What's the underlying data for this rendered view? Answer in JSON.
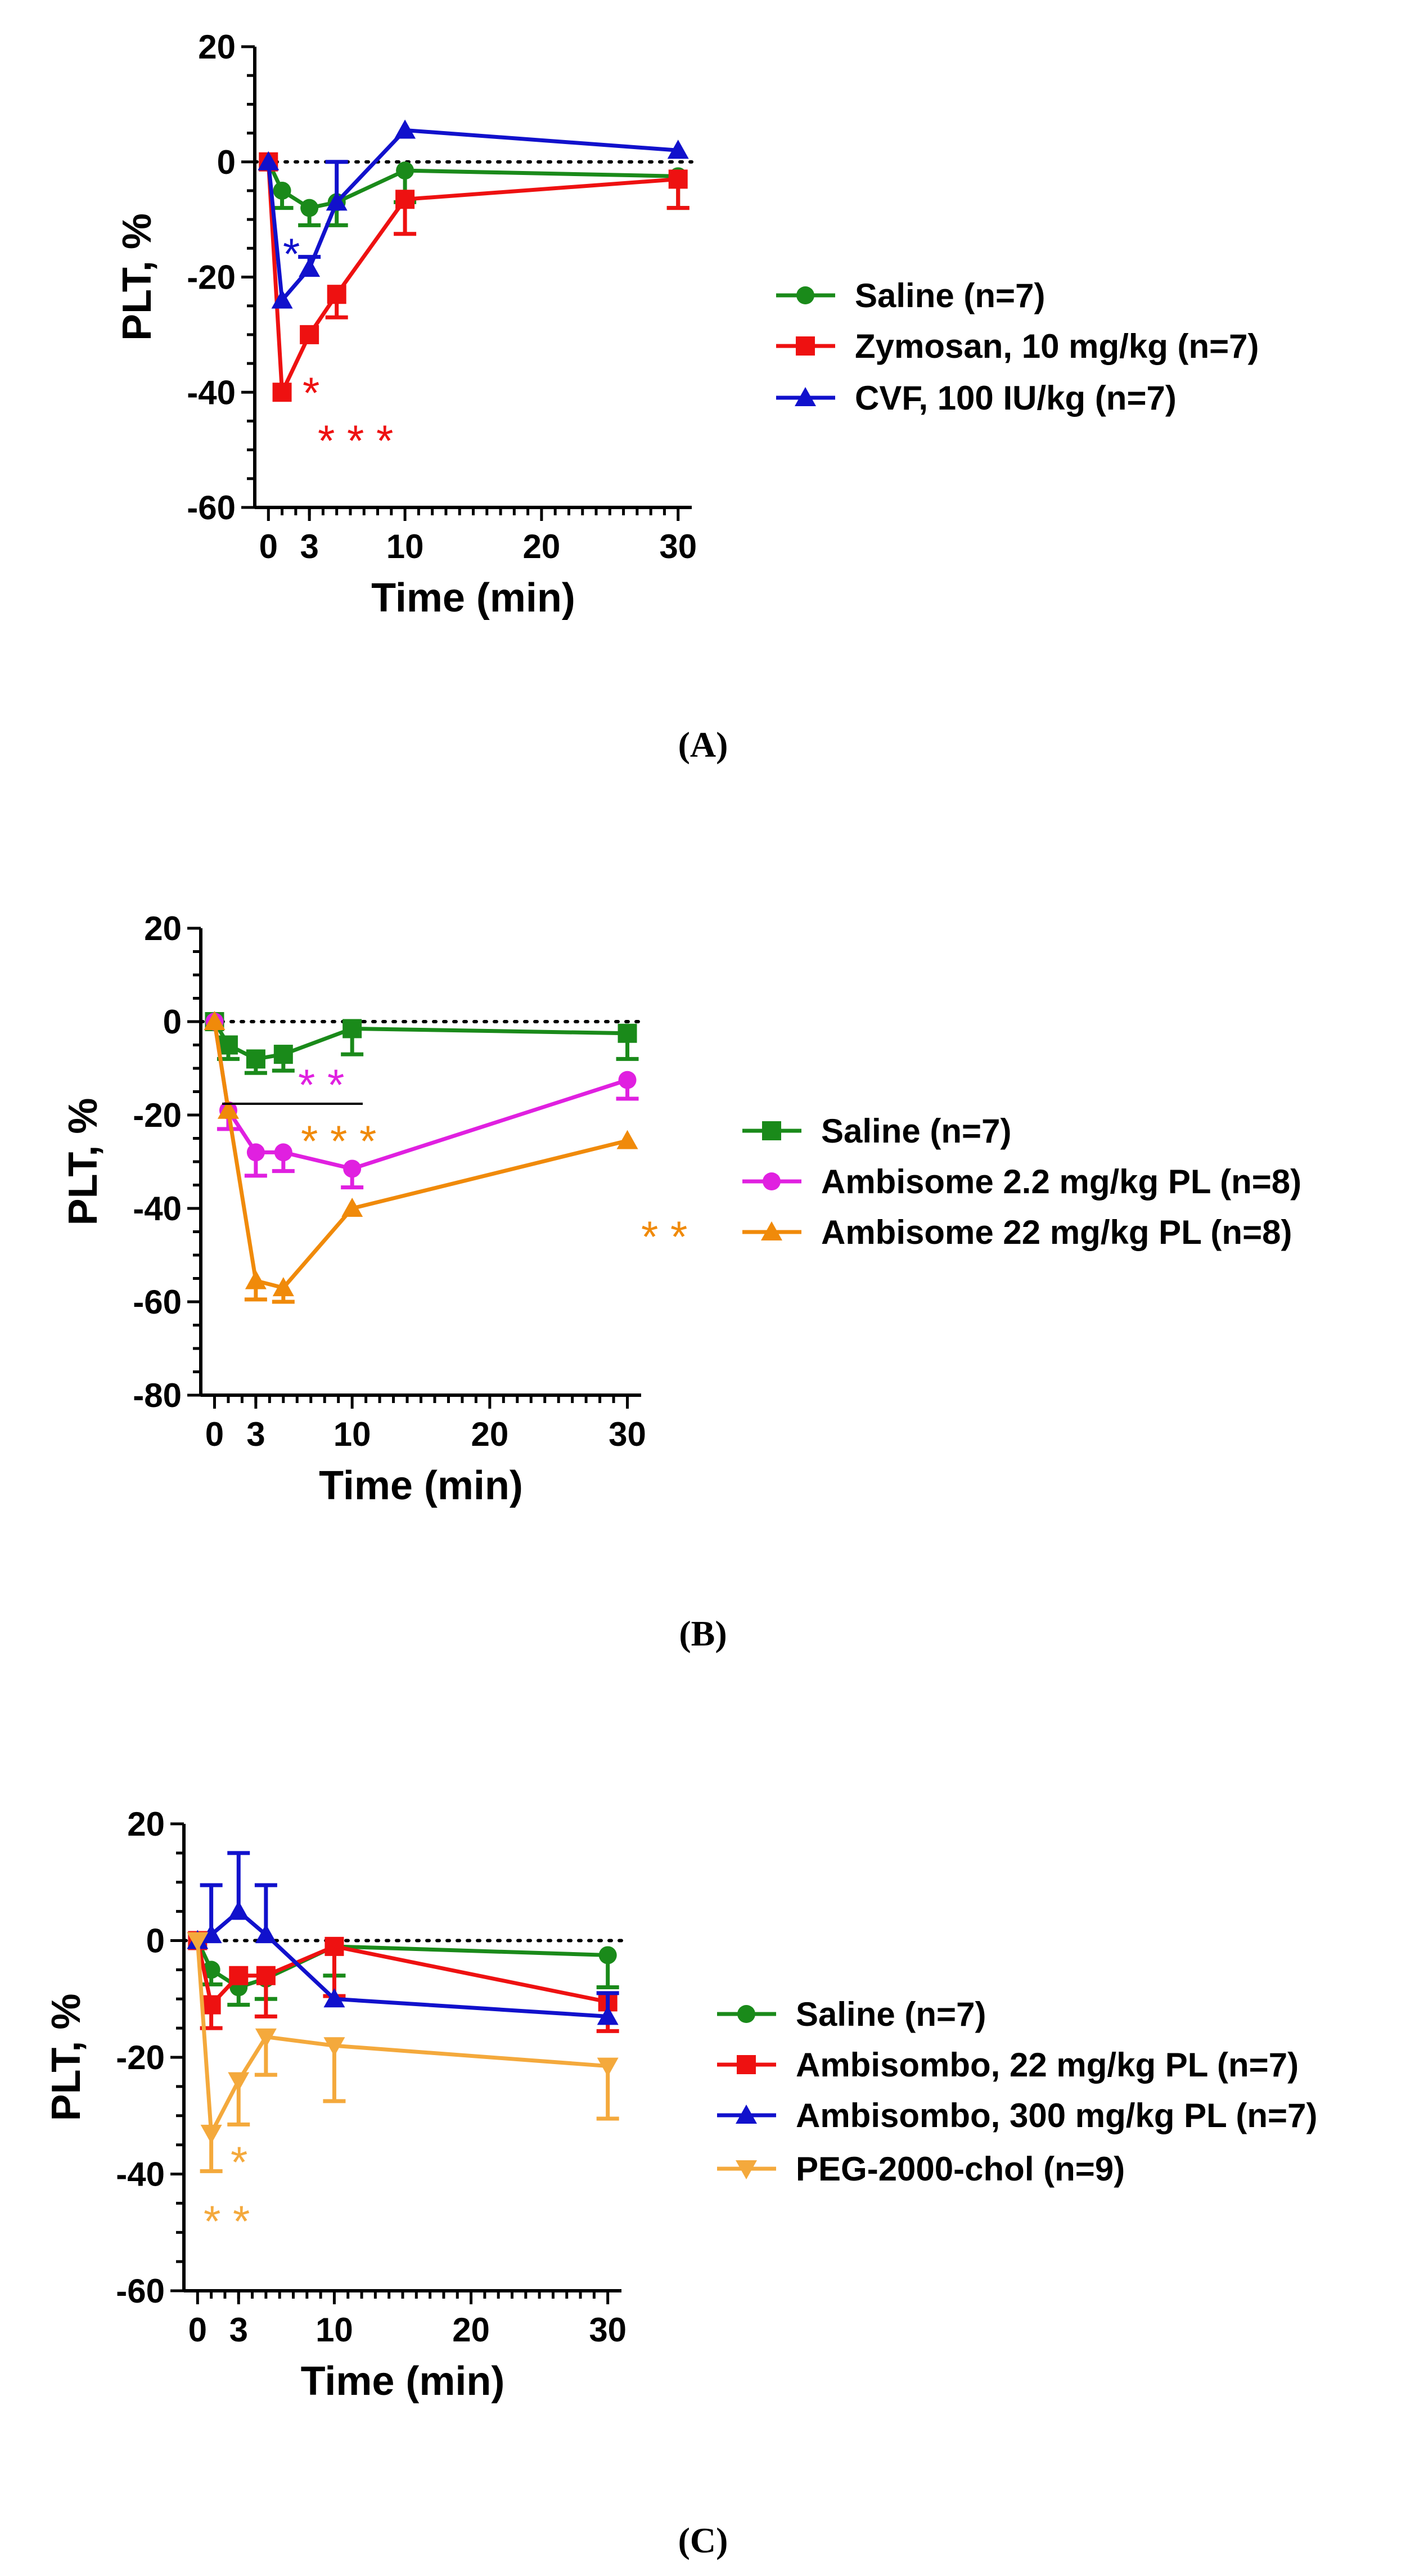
{
  "colors": {
    "green": "#1a8a1a",
    "red": "#ee1111",
    "blue": "#1111cc",
    "magenta": "#e020e0",
    "orange": "#f08a0a",
    "lightorange": "#f4a93c",
    "axis": "#000000"
  },
  "chart_data": [
    {
      "type": "line",
      "panel_label": "(A)",
      "ylabel": "PLT, %",
      "xlabel": "Time (min)",
      "ylim": [
        -60,
        20
      ],
      "yticks": [
        "20",
        "0",
        "-20",
        "-40",
        "-60"
      ],
      "xticks": [
        "0",
        "3",
        "10",
        "20",
        "30"
      ],
      "x": [
        0,
        1,
        3,
        5,
        10,
        30
      ],
      "series": [
        {
          "name": "Saline (n=7)",
          "color": "green",
          "marker": "circle",
          "values": [
            0,
            -5,
            -8,
            -7,
            -1.5,
            -2.5
          ],
          "err": [
            0,
            3,
            3,
            4,
            5.5,
            5.5
          ]
        },
        {
          "name": "Zymosan, 10 mg/kg (n=7)",
          "color": "red",
          "marker": "square",
          "values": [
            0,
            -40,
            -30,
            -23,
            -6.5,
            -3
          ],
          "err": [
            0,
            0,
            0,
            4,
            6,
            5
          ]
        },
        {
          "name": "CVF, 100 IU/kg (n=7)",
          "color": "blue",
          "marker": "triangle",
          "values": [
            0,
            -24,
            -18.5,
            -7,
            5.5,
            2
          ],
          "err": [
            0,
            0,
            2,
            7,
            0,
            0
          ]
        }
      ],
      "annotations": [
        {
          "text": "*",
          "color": "blue"
        },
        {
          "text": "*",
          "color": "red"
        },
        {
          "text": "* * *",
          "color": "red"
        }
      ]
    },
    {
      "type": "line",
      "panel_label": "(B)",
      "ylabel": "PLT, %",
      "xlabel": "Time (min)",
      "ylim": [
        -80,
        20
      ],
      "yticks": [
        "20",
        "0",
        "-20",
        "-40",
        "-60",
        "-80"
      ],
      "xticks": [
        "0",
        "3",
        "10",
        "20",
        "30"
      ],
      "x": [
        0,
        1,
        3,
        5,
        10,
        30
      ],
      "series": [
        {
          "name": "Saline (n=7)",
          "color": "green",
          "marker": "square",
          "values": [
            0,
            -5,
            -8,
            -7,
            -1.5,
            -2.5
          ],
          "err": [
            0,
            3,
            3,
            3.5,
            5.5,
            5.5
          ]
        },
        {
          "name": "Ambisome 2.2 mg/kg PL (n=8)",
          "color": "magenta",
          "marker": "circle",
          "values": [
            0,
            -19,
            -28,
            -28,
            -31.5,
            -12.5
          ],
          "err": [
            0,
            4,
            5,
            4,
            4,
            4
          ]
        },
        {
          "name": "Ambisome 22 mg/kg PL (n=8)",
          "color": "orange",
          "marker": "triangle",
          "values": [
            0,
            -19,
            -55.5,
            -57,
            -40,
            -25.5
          ],
          "err": [
            0,
            0,
            4,
            3,
            0,
            0
          ]
        }
      ],
      "annotations": [
        {
          "text": "* *",
          "color": "magenta"
        },
        {
          "text": "* * *",
          "color": "orange"
        },
        {
          "text": "* *",
          "color": "orange"
        }
      ]
    },
    {
      "type": "line",
      "panel_label": "(C)",
      "ylabel": "PLT, %",
      "xlabel": "Time (min)",
      "ylim": [
        -60,
        20
      ],
      "yticks": [
        "20",
        "0",
        "-20",
        "-40",
        "-60"
      ],
      "xticks": [
        "0",
        "3",
        "10",
        "20",
        "30"
      ],
      "x": [
        0,
        1,
        3,
        5,
        10,
        30
      ],
      "series": [
        {
          "name": "Saline (n=7)",
          "color": "green",
          "marker": "circle",
          "values": [
            0,
            -5,
            -8,
            -6.5,
            -1,
            -2.5
          ],
          "err": [
            0,
            2.5,
            3,
            3.5,
            5,
            5.5
          ]
        },
        {
          "name": "Ambisombo, 22 mg/kg PL (n=7)",
          "color": "red",
          "marker": "square",
          "values": [
            0,
            -11,
            -6,
            -6,
            -1,
            -10.5
          ],
          "err": [
            0,
            4,
            0,
            7,
            8.5,
            5
          ]
        },
        {
          "name": "Ambisombo, 300 mg/kg PL (n=7)",
          "color": "blue",
          "marker": "triangle",
          "values": [
            0,
            1,
            5,
            1,
            -10,
            -13
          ],
          "err": [
            0,
            8.5,
            10,
            8.5,
            0,
            4
          ]
        },
        {
          "name": "PEG-2000-chol (n=9)",
          "color": "lightorange",
          "marker": "triangle-down",
          "values": [
            0,
            -33,
            -24,
            -16.5,
            -18,
            -21.5
          ],
          "err": [
            0,
            6.5,
            7.5,
            6.5,
            9.5,
            9
          ]
        }
      ],
      "annotations": [
        {
          "text": "*",
          "color": "lightorange"
        },
        {
          "text": "* *",
          "color": "lightorange"
        }
      ]
    }
  ]
}
